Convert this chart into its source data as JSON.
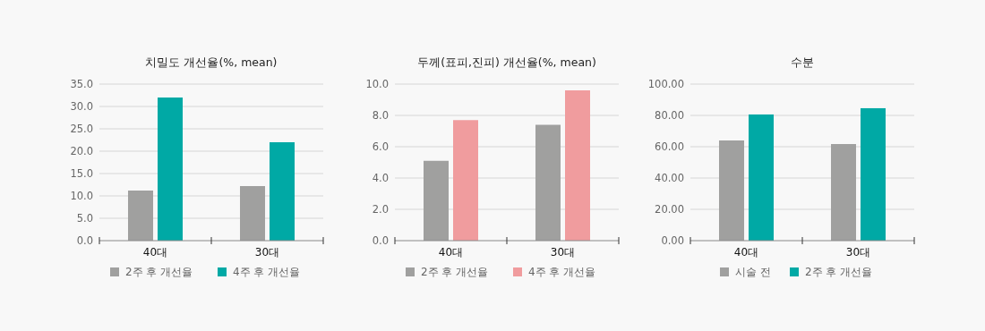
{
  "chart_data": [
    {
      "type": "bar",
      "title": "치밀도 개선율(%, mean)",
      "categories": [
        "40대",
        "30대"
      ],
      "series": [
        {
          "name": "2주 후 개선율",
          "color": "#a0a09f",
          "values": [
            11.2,
            12.2
          ]
        },
        {
          "name": "4주 후 개선율",
          "color": "#00a9a5",
          "values": [
            32.0,
            22.0
          ]
        }
      ],
      "ylim": [
        0,
        35
      ],
      "yticks": [
        {
          "value": 0,
          "label": "0.0"
        },
        {
          "value": 5,
          "label": "5.0"
        },
        {
          "value": 10,
          "label": "10.0"
        },
        {
          "value": 15,
          "label": "15.0"
        },
        {
          "value": 20,
          "label": "20.0"
        },
        {
          "value": 25,
          "label": "25.0"
        },
        {
          "value": 30,
          "label": "30.0"
        },
        {
          "value": 35,
          "label": "35.0"
        }
      ],
      "grid": "y",
      "legend": "bottom"
    },
    {
      "type": "bar",
      "title": "두께(표피,진피) 개선율(%, mean)",
      "categories": [
        "40대",
        "30대"
      ],
      "series": [
        {
          "name": "2주 후 개선율",
          "color": "#a0a09f",
          "values": [
            5.1,
            7.4
          ]
        },
        {
          "name": "4주 후 개선율",
          "color": "#f09c9e",
          "values": [
            7.7,
            9.6
          ]
        }
      ],
      "ylim": [
        0,
        10
      ],
      "yticks": [
        {
          "value": 0,
          "label": "0.0"
        },
        {
          "value": 2,
          "label": "2.0"
        },
        {
          "value": 4,
          "label": "4.0"
        },
        {
          "value": 6,
          "label": "6.0"
        },
        {
          "value": 8,
          "label": "8.0"
        },
        {
          "value": 10,
          "label": "10.0"
        }
      ],
      "grid": "y",
      "legend": "bottom"
    },
    {
      "type": "bar",
      "title": "수분",
      "categories": [
        "40대",
        "30대"
      ],
      "series": [
        {
          "name": "시술 전",
          "color": "#a0a09f",
          "values": [
            64.0,
            61.7
          ]
        },
        {
          "name": "2주 후 개선율",
          "color": "#00a9a5",
          "values": [
            80.6,
            84.6
          ]
        }
      ],
      "ylim": [
        0,
        100
      ],
      "yticks": [
        {
          "value": 0,
          "label": "0.00"
        },
        {
          "value": 20,
          "label": "20.00"
        },
        {
          "value": 40,
          "label": "40.00"
        },
        {
          "value": 60,
          "label": "60.00"
        },
        {
          "value": 80,
          "label": "80.00"
        },
        {
          "value": 100,
          "label": "100.00"
        }
      ],
      "grid": "y",
      "legend": "bottom"
    }
  ]
}
